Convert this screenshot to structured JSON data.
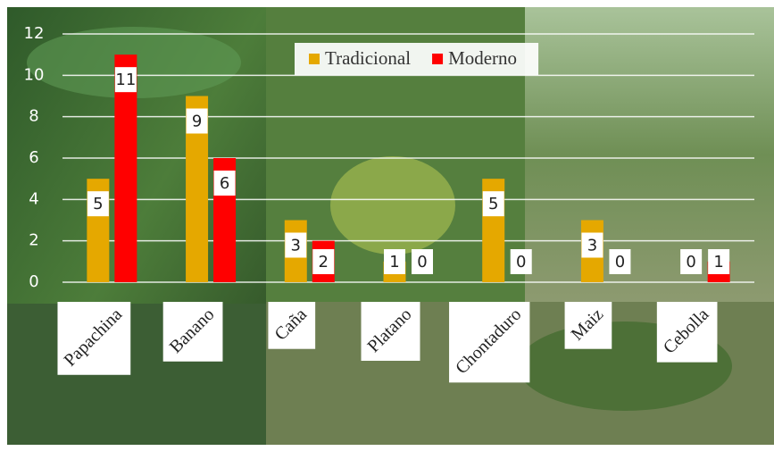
{
  "chart_data": {
    "type": "bar",
    "categories": [
      "Papachina",
      "Banano",
      "Caña",
      "Platano",
      "Chontaduro",
      "Maiz",
      "Cebolla"
    ],
    "series": [
      {
        "name": "Tradicional",
        "color": "#e5a800",
        "values": [
          5,
          9,
          3,
          1,
          5,
          3,
          0
        ]
      },
      {
        "name": "Moderno",
        "color": "#ff0000",
        "values": [
          11,
          6,
          2,
          0,
          0,
          0,
          1
        ]
      }
    ],
    "ylim": [
      0,
      12
    ],
    "yticks": [
      0,
      2,
      4,
      6,
      8,
      10,
      12
    ],
    "grid": true,
    "legend": "top"
  }
}
